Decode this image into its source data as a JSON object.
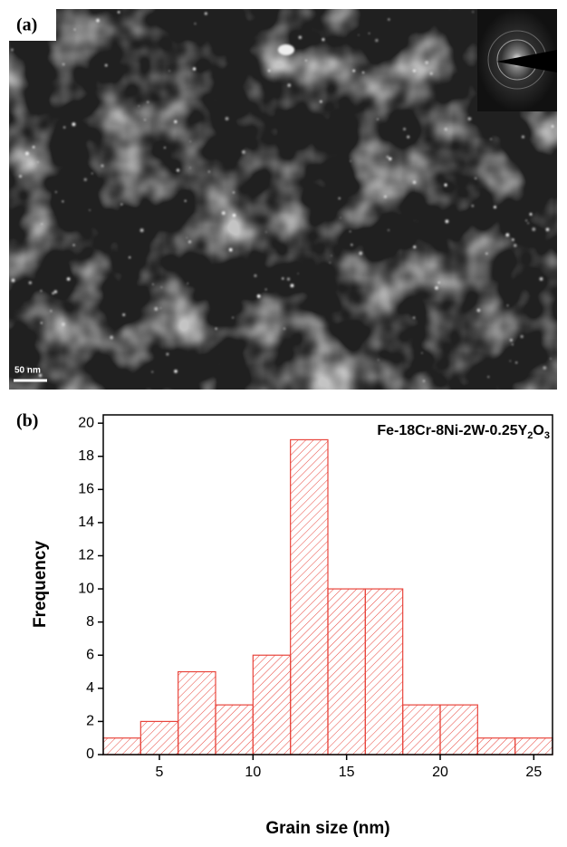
{
  "image_panel": {
    "label": "(a)",
    "scale_bar": "50 nm"
  },
  "chart_data": {
    "type": "histogram",
    "panel_label": "(b)",
    "annotation": [
      "Fe-18Cr-8Ni-2W-0.25Y",
      "2",
      "O",
      "3"
    ],
    "xlabel": "Grain size (nm)",
    "ylabel": "Frequency",
    "bins": [
      2,
      4,
      6,
      8,
      10,
      12,
      14,
      16,
      18,
      20,
      22,
      24,
      26
    ],
    "values": [
      1,
      2,
      5,
      3,
      6,
      19,
      10,
      10,
      3,
      3,
      1,
      1
    ],
    "color": "#e8453c",
    "xlim": [
      2,
      26
    ],
    "xticks": [
      5,
      10,
      15,
      20,
      25
    ],
    "ylim": [
      0,
      20.5
    ],
    "yticks": [
      0,
      2,
      4,
      6,
      8,
      10,
      12,
      14,
      16,
      18,
      20
    ]
  }
}
